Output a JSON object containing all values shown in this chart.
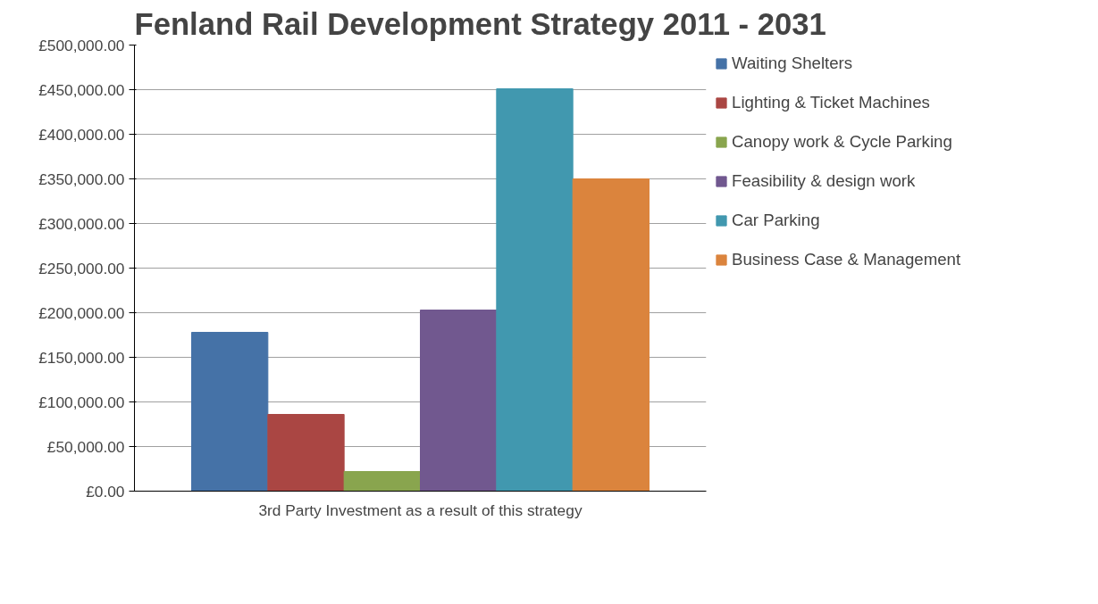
{
  "chart_data": {
    "type": "bar",
    "title": "Fenland Rail Development Strategy 2011 - 2031",
    "categories": [
      "3rd Party Investment as a result of this strategy"
    ],
    "series": [
      {
        "name": "Waiting Shelters",
        "color": "#4572a7",
        "values": [
          178000
        ]
      },
      {
        "name": "Lighting & Ticket Machines",
        "color": "#aa4643",
        "values": [
          86000
        ]
      },
      {
        "name": "Canopy work & Cycle Parking",
        "color": "#89a54e",
        "values": [
          22000
        ]
      },
      {
        "name": "Feasibility & design work",
        "color": "#71588f",
        "values": [
          203000
        ]
      },
      {
        "name": "Car Parking",
        "color": "#4198af",
        "values": [
          451000
        ]
      },
      {
        "name": "Business Case & Management",
        "color": "#db843d",
        "values": [
          350000
        ]
      }
    ],
    "ylim": [
      0,
      500000
    ],
    "yticks": [
      {
        "value": 0,
        "label": "£0.00"
      },
      {
        "value": 50000,
        "label": "£50,000.00"
      },
      {
        "value": 100000,
        "label": "£100,000.00"
      },
      {
        "value": 150000,
        "label": "£150,000.00"
      },
      {
        "value": 200000,
        "label": "£200,000.00"
      },
      {
        "value": 250000,
        "label": "£250,000.00"
      },
      {
        "value": 300000,
        "label": "£300,000.00"
      },
      {
        "value": 350000,
        "label": "£350,000.00"
      },
      {
        "value": 400000,
        "label": "£400,000.00"
      },
      {
        "value": 450000,
        "label": "£450,000.00"
      },
      {
        "value": 500000,
        "label": "£500,000.00"
      }
    ],
    "grid": "y",
    "legend": "right"
  }
}
